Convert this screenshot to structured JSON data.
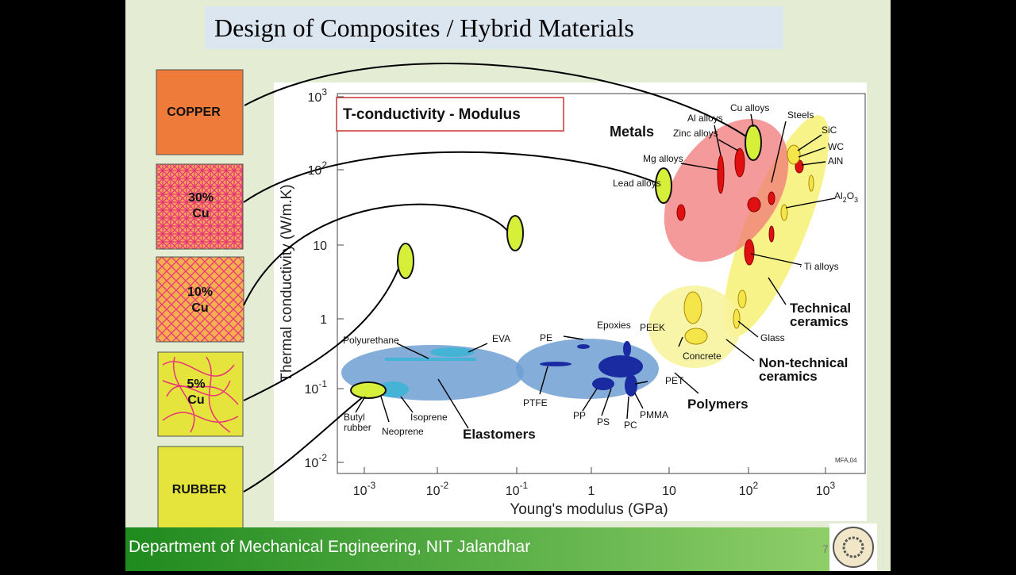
{
  "header": {
    "title": "Design of Composites / Hybrid Materials"
  },
  "boxes": [
    {
      "label": [
        "COPPER"
      ]
    },
    {
      "label": [
        "30%",
        "Cu"
      ]
    },
    {
      "label": [
        "10%",
        "Cu"
      ]
    },
    {
      "label": [
        "5%",
        "Cu"
      ]
    },
    {
      "label": [
        "RUBBER"
      ]
    }
  ],
  "chart": {
    "title": "T-conductivity - Modulus",
    "x_label": "Young's modulus (GPa)",
    "y_label": "Thermal conductivity (W/m.K)",
    "x_ticks": [
      {
        "base": "10",
        "exp": "-3"
      },
      {
        "base": "10",
        "exp": "-2"
      },
      {
        "base": "10",
        "exp": "-1"
      },
      {
        "base": "1"
      },
      {
        "base": "10"
      },
      {
        "base": "10",
        "exp": "2"
      },
      {
        "base": "10",
        "exp": "3"
      }
    ],
    "y_ticks": [
      {
        "base": "10",
        "exp": "-2"
      },
      {
        "base": "10",
        "exp": "-1"
      },
      {
        "base": "1"
      },
      {
        "base": "10"
      },
      {
        "base": "10",
        "exp": "2"
      },
      {
        "base": "10",
        "exp": "3"
      }
    ],
    "families": [
      {
        "lines": [
          "Metals"
        ]
      },
      {
        "lines": [
          "Elastomers"
        ]
      },
      {
        "lines": [
          "Polymers"
        ]
      },
      {
        "lines": [
          "Technical",
          "ceramics"
        ]
      },
      {
        "lines": [
          "Non-technical",
          "ceramics"
        ]
      }
    ],
    "materials": [
      {
        "lines": [
          "Al alloys"
        ]
      },
      {
        "lines": [
          "Cu alloys"
        ]
      },
      {
        "lines": [
          "Steels"
        ]
      },
      {
        "lines": [
          "Zinc alloys"
        ]
      },
      {
        "lines": [
          "SiC"
        ]
      },
      {
        "lines": [
          "WC"
        ]
      },
      {
        "lines": [
          "AlN"
        ]
      },
      {
        "lines": [
          "Mg alloys"
        ]
      },
      {
        "lines": [
          "Lead alloys"
        ]
      },
      {
        "lines": [
          "Ti alloys"
        ]
      },
      {
        "lines": [
          "Glass"
        ]
      },
      {
        "lines": [
          "Concrete"
        ]
      },
      {
        "lines": [
          "Epoxies"
        ]
      },
      {
        "lines": [
          "PEEK"
        ]
      },
      {
        "lines": [
          "PE"
        ]
      },
      {
        "lines": [
          "EVA"
        ]
      },
      {
        "lines": [
          "Polyurethane"
        ]
      },
      {
        "lines": [
          "PTFE"
        ]
      },
      {
        "lines": [
          "PET"
        ]
      },
      {
        "lines": [
          "PP"
        ]
      },
      {
        "lines": [
          "PS"
        ]
      },
      {
        "lines": [
          "PC"
        ]
      },
      {
        "lines": [
          "PMMA"
        ]
      },
      {
        "lines": [
          "Butyl",
          "rubber"
        ]
      },
      {
        "lines": [
          "Neoprene"
        ]
      },
      {
        "lines": [
          "Isoprene"
        ]
      }
    ],
    "alumina": [
      "Al",
      "2",
      "O",
      "3"
    ],
    "credit": "MFA,04"
  },
  "footer": {
    "text": "Department of Mechanical Engineering, NIT Jalandhar",
    "page": "7"
  }
}
